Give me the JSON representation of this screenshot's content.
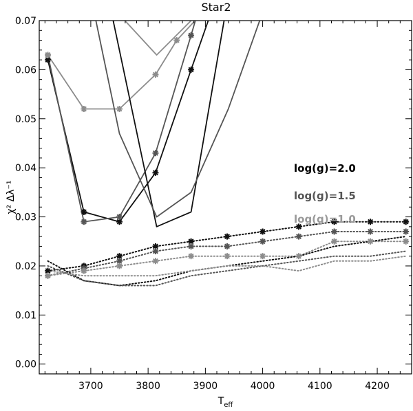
{
  "chart_data": {
    "type": "line",
    "title": "Star2",
    "xlabel": "T",
    "xlabel_sub": "eff",
    "ylabel": "χ² Δλ⁻¹",
    "xlim": [
      3610,
      4260
    ],
    "ylim": [
      -0.002,
      0.07
    ],
    "x_ticks": [
      3700,
      3800,
      3900,
      4000,
      4100,
      4200
    ],
    "y_ticks": [
      0.0,
      0.01,
      0.02,
      0.03,
      0.04,
      0.05,
      0.06,
      0.07
    ],
    "y_tick_labels": [
      "0.00",
      "0.01",
      "0.02",
      "0.03",
      "0.04",
      "0.05",
      "0.06",
      "0.07"
    ],
    "grid": false,
    "legend_position": "right",
    "legend": [
      {
        "label": "log(g)=2.0",
        "color": "#000000"
      },
      {
        "label": "log(g)=1.5",
        "color": "#555555"
      },
      {
        "label": "log(g)=1.0",
        "color": "#999999"
      }
    ],
    "series": [
      {
        "logg": "2.0",
        "color": "#111111",
        "style": "solid",
        "markers": true,
        "x": [
          3625,
          3688,
          3750,
          3813,
          3875,
          3920
        ],
        "y": [
          0.062,
          0.031,
          0.029,
          0.039,
          0.06,
          0.075
        ]
      },
      {
        "logg": "1.5",
        "color": "#555555",
        "style": "solid",
        "markers": true,
        "x": [
          3625,
          3688,
          3750,
          3813,
          3875,
          3895
        ],
        "y": [
          0.063,
          0.029,
          0.03,
          0.043,
          0.067,
          0.075
        ]
      },
      {
        "logg": "1.0",
        "color": "#8c8c8c",
        "style": "solid",
        "markers": true,
        "x": [
          3625,
          3688,
          3750,
          3813,
          3850,
          3890
        ],
        "y": [
          0.063,
          0.052,
          0.052,
          0.059,
          0.066,
          0.071
        ]
      },
      {
        "logg": "2.0",
        "color": "#111111",
        "style": "solid",
        "markers": false,
        "x": [
          3730,
          3815,
          3875,
          3940
        ],
        "y": [
          0.075,
          0.028,
          0.031,
          0.075
        ]
      },
      {
        "logg": "1.5",
        "color": "#555555",
        "style": "solid",
        "markers": false,
        "x": [
          3700,
          3750,
          3815,
          3875,
          3940,
          4010
        ],
        "y": [
          0.075,
          0.047,
          0.03,
          0.035,
          0.052,
          0.075
        ]
      },
      {
        "logg": "1.0",
        "color": "#8c8c8c",
        "style": "solid",
        "markers": false,
        "x": [
          3720,
          3815,
          3875
        ],
        "y": [
          0.075,
          0.063,
          0.07
        ]
      },
      {
        "logg": "2.0",
        "color": "#111111",
        "style": "dotted",
        "markers": true,
        "x": [
          3625,
          3688,
          3750,
          3813,
          3875,
          3938,
          4000,
          4063,
          4125,
          4188,
          4250
        ],
        "y": [
          0.019,
          0.02,
          0.022,
          0.024,
          0.025,
          0.026,
          0.027,
          0.028,
          0.029,
          0.029,
          0.029
        ]
      },
      {
        "logg": "1.5",
        "color": "#555555",
        "style": "dotted",
        "markers": true,
        "x": [
          3625,
          3688,
          3750,
          3813,
          3875,
          3938,
          4000,
          4063,
          4125,
          4188,
          4250
        ],
        "y": [
          0.018,
          0.0195,
          0.021,
          0.023,
          0.024,
          0.024,
          0.025,
          0.026,
          0.027,
          0.027,
          0.027
        ]
      },
      {
        "logg": "1.0",
        "color": "#8c8c8c",
        "style": "dotted",
        "markers": true,
        "x": [
          3625,
          3688,
          3750,
          3813,
          3875,
          3938,
          4000,
          4063,
          4125,
          4188,
          4250
        ],
        "y": [
          0.018,
          0.019,
          0.02,
          0.021,
          0.022,
          0.022,
          0.022,
          0.022,
          0.025,
          0.025,
          0.025
        ]
      },
      {
        "logg": "2.0",
        "color": "#111111",
        "style": "dotted",
        "markers": false,
        "x": [
          3625,
          3688,
          3750,
          3813,
          3875,
          3938,
          4000,
          4063,
          4125,
          4188,
          4250
        ],
        "y": [
          0.021,
          0.017,
          0.016,
          0.017,
          0.019,
          0.02,
          0.021,
          0.022,
          0.024,
          0.025,
          0.026
        ]
      },
      {
        "logg": "1.5",
        "color": "#555555",
        "style": "dotted",
        "markers": false,
        "x": [
          3625,
          3688,
          3750,
          3813,
          3875,
          3938,
          4000,
          4063,
          4125,
          4188,
          4250
        ],
        "y": [
          0.02,
          0.017,
          0.016,
          0.016,
          0.018,
          0.019,
          0.02,
          0.021,
          0.022,
          0.022,
          0.023
        ]
      },
      {
        "logg": "1.0",
        "color": "#8c8c8c",
        "style": "dotted",
        "markers": false,
        "x": [
          3625,
          3688,
          3750,
          3813,
          3875,
          3938,
          4000,
          4063,
          4125,
          4188,
          4250
        ],
        "y": [
          0.019,
          0.018,
          0.018,
          0.018,
          0.019,
          0.02,
          0.02,
          0.019,
          0.021,
          0.021,
          0.022
        ]
      }
    ]
  }
}
